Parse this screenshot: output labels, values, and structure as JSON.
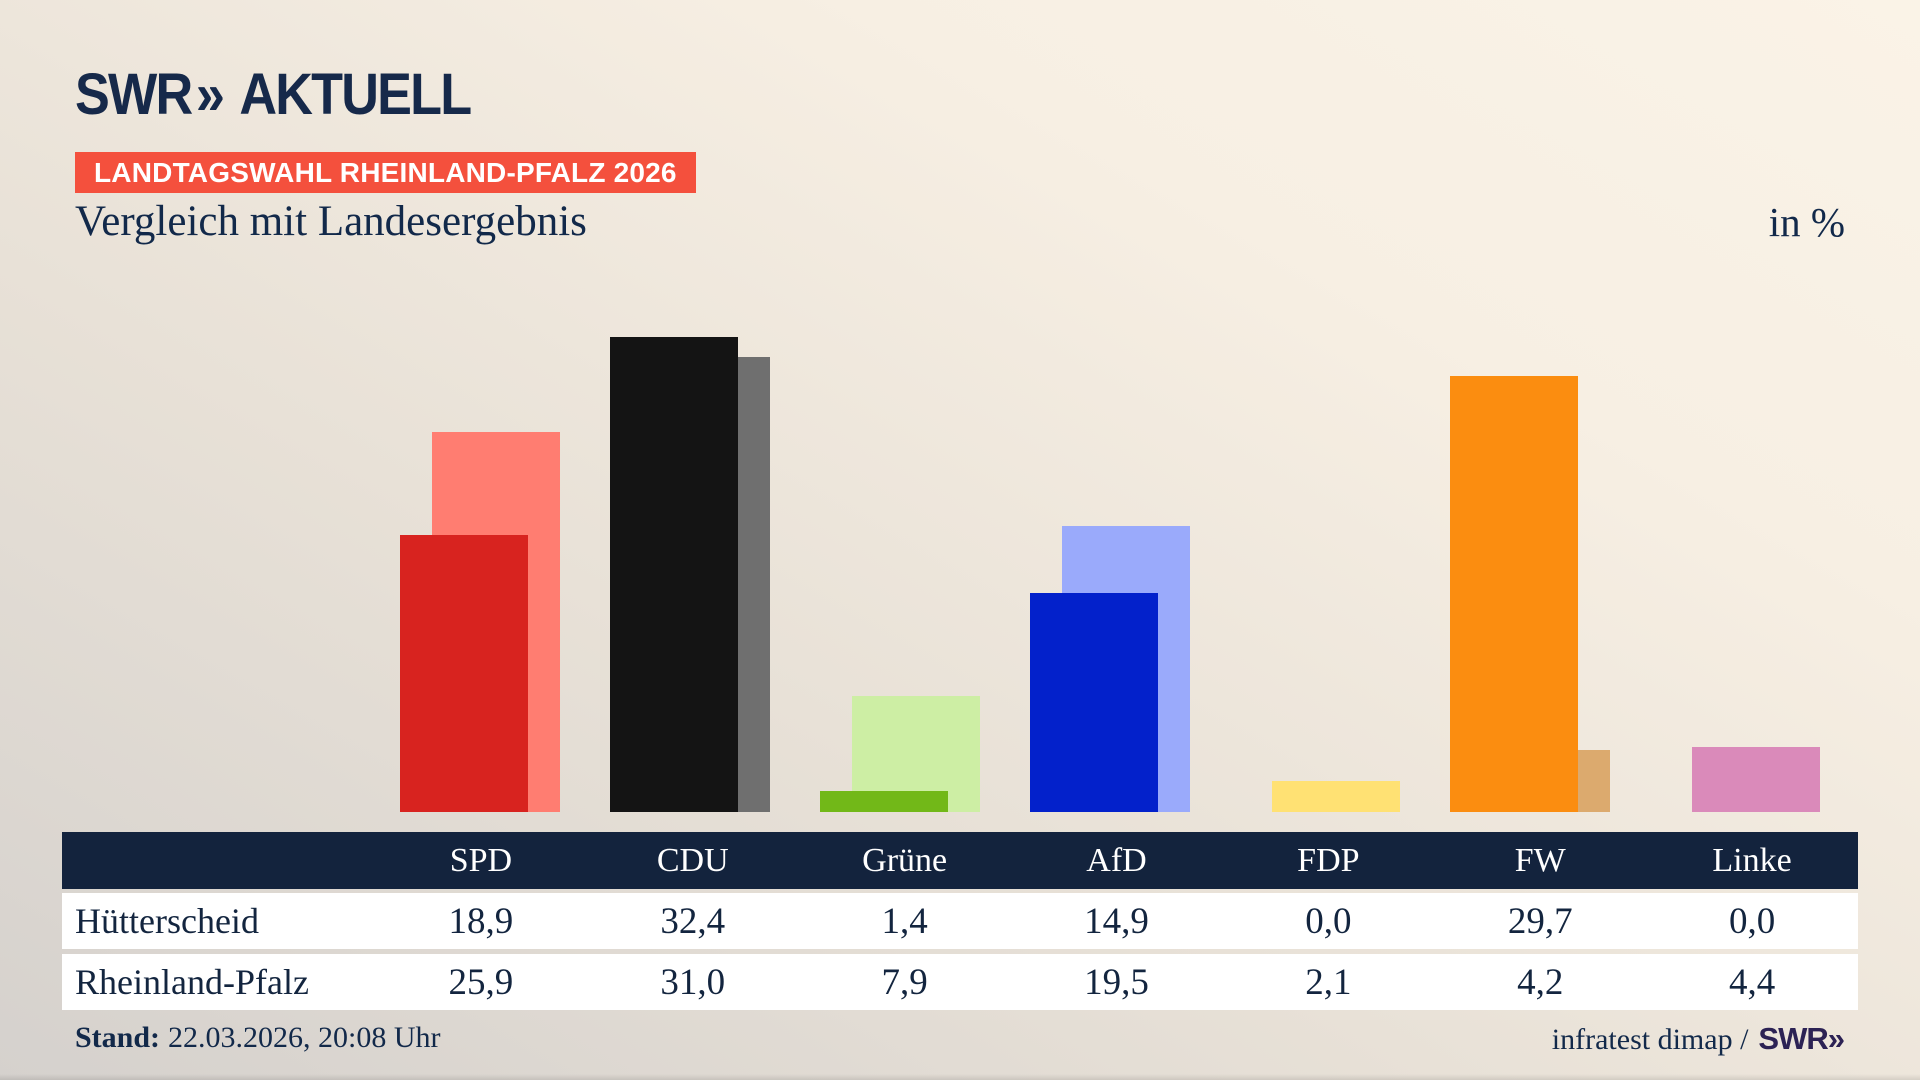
{
  "brand": {
    "swr": "SWR",
    "chevron": "»",
    "product": "AKTUELL"
  },
  "header": {
    "badge": "LANDTAGSWAHL RHEINLAND-PFALZ 2026",
    "title": "Vergleich mit Landesergebnis",
    "unit": "in %"
  },
  "chart_data": {
    "type": "bar",
    "title": "Vergleich mit Landesergebnis",
    "unit_label": "in %",
    "categories": [
      "SPD",
      "CDU",
      "Grüne",
      "AfD",
      "FDP",
      "FW",
      "Linke"
    ],
    "series": [
      {
        "name": "Hütterscheid",
        "role": "foreground",
        "values": [
          18.9,
          32.4,
          1.4,
          14.9,
          0.0,
          29.7,
          0.0
        ],
        "colors": [
          "#d8231f",
          "#141414",
          "#72b818",
          "#0321cb",
          "#f5d44c",
          "#fb8d10",
          "#c85a9e"
        ]
      },
      {
        "name": "Rheinland-Pfalz",
        "role": "background",
        "values": [
          25.9,
          31.0,
          7.9,
          19.5,
          2.1,
          4.2,
          4.4
        ],
        "colors": [
          "#ff7d71",
          "#6f6f6f",
          "#cdeea4",
          "#9aaafb",
          "#ffe173",
          "#dcaa6e",
          "#da8aba"
        ]
      }
    ],
    "ylim": [
      0,
      38.3
    ],
    "grid": false,
    "legend": "table-below"
  },
  "table": {
    "rows": [
      {
        "label": "Hütterscheid",
        "values": [
          "18,9",
          "32,4",
          "1,4",
          "14,9",
          "0,0",
          "29,7",
          "0,0"
        ]
      },
      {
        "label": "Rheinland-Pfalz",
        "values": [
          "25,9",
          "31,0",
          "7,9",
          "19,5",
          "2,1",
          "4,2",
          "4,4"
        ]
      }
    ]
  },
  "footer": {
    "stand_label": "Stand:",
    "stand_value": "22.03.2026, 20:08 Uhr",
    "source_text": "infratest dimap /",
    "source_brand": "SWR",
    "source_chevron": "»"
  },
  "colors": {
    "navy": "#13253f",
    "header_row_bg": "#13233d",
    "badge_bg": "#f4503d",
    "logo": "#16294a",
    "source_brand": "#2c2254",
    "background_top_right": "#faf3e7",
    "background_bottom_left": "#d5d1cd"
  }
}
